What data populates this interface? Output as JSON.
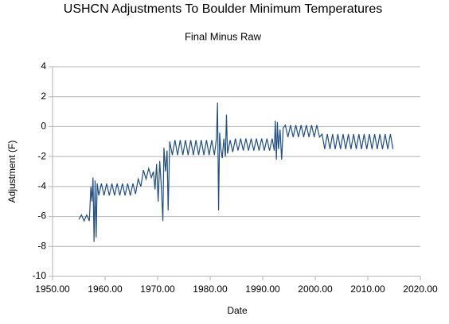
{
  "chart_data": {
    "type": "line",
    "title": "USHCN Adjustments To Boulder Minimum Temperatures",
    "subtitle": "Final Minus Raw",
    "x_label": "Date",
    "y_label": "Adjustment (F)",
    "grid": true,
    "xlim": [
      1950,
      2020
    ],
    "xticks": [
      {
        "value": 1950,
        "label": "1950.00"
      },
      {
        "value": 1960,
        "label": "1960.00"
      },
      {
        "value": 1970,
        "label": "1970.00"
      },
      {
        "value": 1980,
        "label": "1980.00"
      },
      {
        "value": 1990,
        "label": "1990.00"
      },
      {
        "value": 2000,
        "label": "2000.00"
      },
      {
        "value": 2010,
        "label": "2010.00"
      },
      {
        "value": 2020,
        "label": "2020.00"
      }
    ],
    "ylim": [
      -10,
      4
    ],
    "yticks": [
      -10,
      -8,
      -6,
      -4,
      -2,
      0,
      2,
      4
    ],
    "x": [
      1955.0,
      1955.5,
      1956.0,
      1956.5,
      1957.0,
      1957.3,
      1957.5,
      1957.7,
      1957.9,
      1958.1,
      1958.3,
      1958.5,
      1958.8,
      1959.3,
      1959.8,
      1960.3,
      1960.8,
      1961.3,
      1961.8,
      1962.3,
      1962.8,
      1963.3,
      1963.8,
      1964.3,
      1964.8,
      1965.3,
      1965.8,
      1966.3,
      1966.8,
      1967.3,
      1967.8,
      1968.3,
      1968.8,
      1969.2,
      1969.5,
      1969.8,
      1970.1,
      1970.4,
      1970.7,
      1971.0,
      1971.2,
      1971.5,
      1971.8,
      1972.0,
      1972.3,
      1972.8,
      1973.3,
      1973.8,
      1974.3,
      1974.8,
      1975.3,
      1975.8,
      1976.3,
      1976.8,
      1977.3,
      1977.8,
      1978.3,
      1978.8,
      1979.3,
      1979.8,
      1980.3,
      1980.8,
      1981.2,
      1981.4,
      1981.6,
      1981.8,
      1982.0,
      1982.3,
      1982.6,
      1982.9,
      1983.1,
      1983.3,
      1983.8,
      1984.3,
      1984.8,
      1985.3,
      1985.8,
      1986.3,
      1986.8,
      1987.3,
      1987.8,
      1988.3,
      1988.8,
      1989.3,
      1989.8,
      1990.3,
      1990.8,
      1991.3,
      1991.8,
      1992.2,
      1992.4,
      1992.6,
      1992.8,
      1993.0,
      1993.3,
      1993.6,
      1993.9,
      1994.3,
      1994.8,
      1995.3,
      1995.8,
      1996.3,
      1996.8,
      1997.3,
      1997.8,
      1998.3,
      1998.8,
      1999.3,
      1999.8,
      2000.3,
      2000.8,
      2001.3,
      2001.8,
      2002.3,
      2002.8,
      2003.3,
      2003.8,
      2004.3,
      2004.8,
      2005.3,
      2005.8,
      2006.3,
      2006.8,
      2007.3,
      2007.8,
      2008.3,
      2008.8,
      2009.3,
      2009.8,
      2010.3,
      2010.8,
      2011.3,
      2011.8,
      2012.3,
      2012.8,
      2013.3,
      2013.8,
      2014.3,
      2014.8
    ],
    "series": [
      {
        "color": "#1f4f85",
        "values": [
          -6.2,
          -5.9,
          -6.3,
          -5.9,
          -6.3,
          -4.0,
          -5.0,
          -3.4,
          -7.7,
          -3.6,
          -7.4,
          -3.8,
          -4.6,
          -3.8,
          -4.6,
          -3.8,
          -4.6,
          -3.8,
          -4.6,
          -3.8,
          -4.6,
          -3.8,
          -4.6,
          -3.8,
          -4.6,
          -3.8,
          -4.5,
          -3.5,
          -4.0,
          -2.9,
          -3.5,
          -2.8,
          -3.4,
          -3.0,
          -4.2,
          -2.5,
          -5.0,
          -2.3,
          -4.0,
          -6.3,
          -1.4,
          -3.0,
          -1.6,
          -5.6,
          -1.0,
          -1.9,
          -0.9,
          -1.9,
          -0.9,
          -1.9,
          -0.9,
          -1.9,
          -0.9,
          -1.9,
          -0.9,
          -1.9,
          -0.9,
          -1.9,
          -0.9,
          -1.9,
          -0.9,
          -1.9,
          -0.8,
          1.6,
          -5.6,
          -0.4,
          -1.4,
          -2.1,
          -0.8,
          -2.0,
          0.8,
          -1.8,
          -0.9,
          -1.7,
          -0.8,
          -1.6,
          -0.8,
          -1.6,
          -0.8,
          -1.6,
          -0.8,
          -1.6,
          -0.8,
          -1.6,
          -0.8,
          -1.6,
          -0.8,
          -1.6,
          -0.8,
          -1.6,
          0.4,
          -2.2,
          0.3,
          -1.5,
          -0.2,
          -2.2,
          -0.1,
          0.1,
          -0.7,
          0.1,
          -0.7,
          0.1,
          -0.7,
          0.1,
          -0.7,
          0.1,
          -0.7,
          0.1,
          -0.7,
          0.1,
          -0.7,
          -0.5,
          -1.5,
          -0.5,
          -1.5,
          -0.5,
          -1.5,
          -0.5,
          -1.5,
          -0.5,
          -1.5,
          -0.5,
          -1.5,
          -0.5,
          -1.5,
          -0.5,
          -1.5,
          -0.5,
          -1.5,
          -0.5,
          -1.5,
          -0.5,
          -1.5,
          -0.5,
          -1.5,
          -0.5,
          -1.5,
          -0.5,
          -1.5
        ]
      }
    ]
  }
}
